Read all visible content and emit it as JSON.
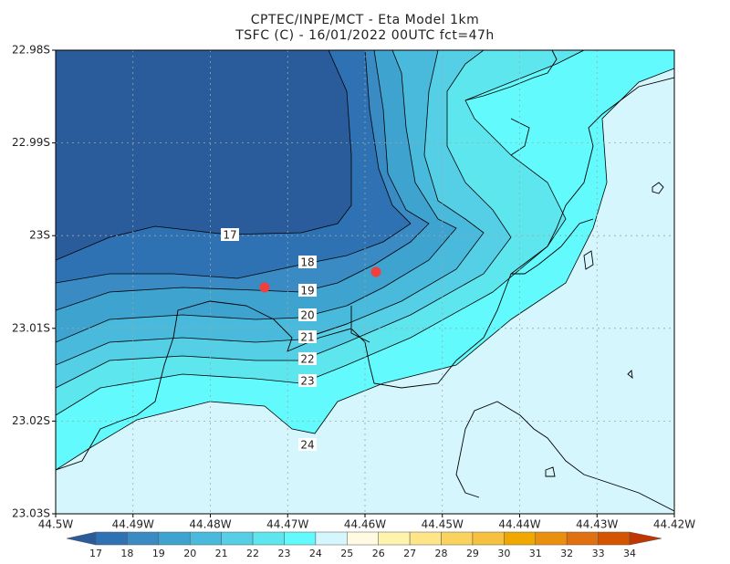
{
  "chart_data": {
    "type": "contour",
    "title": "CPTEC/INPE/MCT -  Eta Model 1km",
    "subtitle": "TSFC (C) - 16/01/2022 00UTC fct=47h",
    "xlim": [
      -44.5,
      -44.42
    ],
    "ylim": [
      -23.03,
      -22.98
    ],
    "xticks": [
      {
        "value": -44.5,
        "label": "44.5W"
      },
      {
        "value": -44.49,
        "label": "44.49W"
      },
      {
        "value": -44.48,
        "label": "44.48W"
      },
      {
        "value": -44.47,
        "label": "44.47W"
      },
      {
        "value": -44.46,
        "label": "44.46W"
      },
      {
        "value": -44.45,
        "label": "44.45W"
      },
      {
        "value": -44.44,
        "label": "44.44W"
      },
      {
        "value": -44.43,
        "label": "44.43W"
      },
      {
        "value": -44.42,
        "label": "44.42W"
      }
    ],
    "yticks": [
      {
        "value": -22.98,
        "label": "22.98S"
      },
      {
        "value": -22.99,
        "label": "22.99S"
      },
      {
        "value": -23.0,
        "label": "23S"
      },
      {
        "value": -23.01,
        "label": "23.01S"
      },
      {
        "value": -23.02,
        "label": "23.02S"
      },
      {
        "value": -23.03,
        "label": "23.03S"
      }
    ],
    "grid": true,
    "contour_labels": [
      17,
      18,
      19,
      20,
      21,
      22,
      23,
      24
    ],
    "colorbar": {
      "levels": [
        17,
        18,
        19,
        20,
        21,
        22,
        23,
        24,
        25,
        26,
        27,
        28,
        29,
        30,
        31,
        32,
        33,
        34
      ],
      "colors": [
        "#2a5b9b",
        "#2f72b3",
        "#3a8ac4",
        "#3fa3cf",
        "#49b9dc",
        "#54cfe5",
        "#5ee6ee",
        "#62fafc",
        "#d4f6fc",
        "#fffbe2",
        "#fff4ae",
        "#fde588",
        "#f9d35e",
        "#f5c13e",
        "#f0a800",
        "#eb900e",
        "#e07010",
        "#d45400",
        "#c03500"
      ]
    }
  }
}
